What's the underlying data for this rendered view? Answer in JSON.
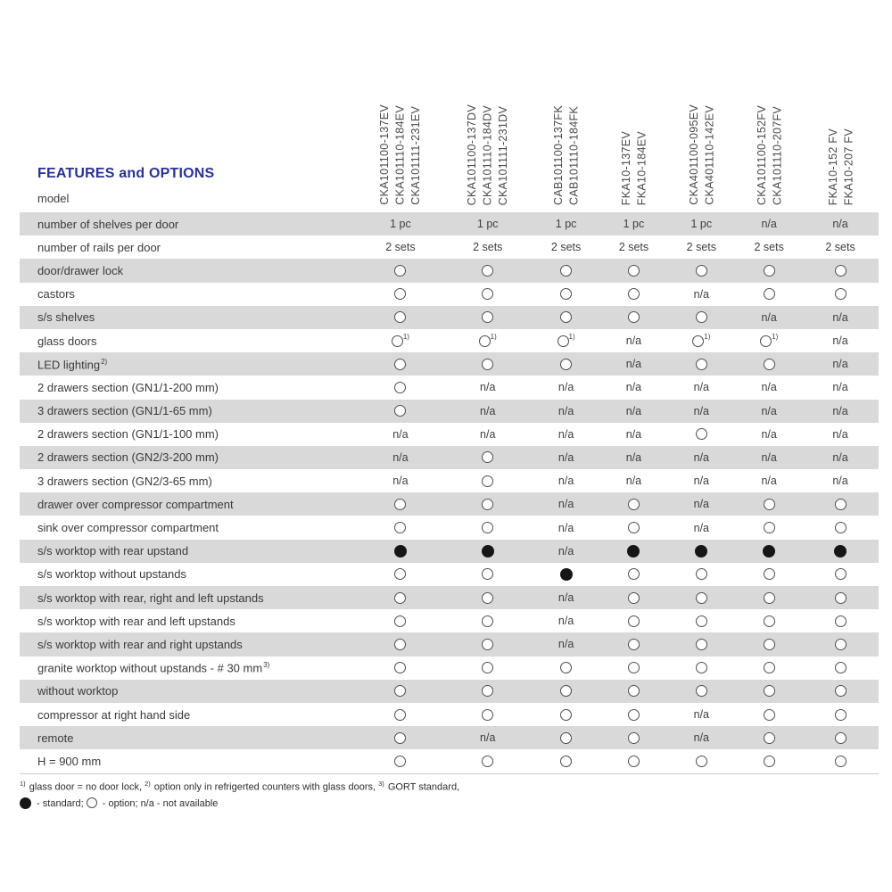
{
  "page": {
    "title": "FEATURES and OPTIONS",
    "model_label": "model"
  },
  "columns": [
    {
      "models": [
        "CKA101100-137EV",
        "CKA101110-184EV",
        "CKA101111-231EV"
      ]
    },
    {
      "models": [
        "CKA101100-137DV",
        "CKA101110-184DV",
        "CKA101111-231DV"
      ]
    },
    {
      "models": [
        "CAB101100-137FK",
        "CAB101110-184FK"
      ]
    },
    {
      "models": [
        "FKA10-137EV",
        "FKA10-184EV"
      ]
    },
    {
      "models": [
        "CKA401100-095EV",
        "CKA401110-142EV"
      ]
    },
    {
      "models": [
        "CKA101100-152FV",
        "CKA101110-207FV"
      ]
    },
    {
      "models": [
        "FKA10-152 FV",
        "FKA10-207 FV"
      ]
    }
  ],
  "sup_option": "1)",
  "rows": [
    {
      "label": "number of shelves per door",
      "values": [
        "1 pc",
        "1 pc",
        "1 pc",
        "1 pc",
        "1 pc",
        "n/a",
        "n/a"
      ]
    },
    {
      "label": "number of rails per door",
      "values": [
        "2 sets",
        "2 sets",
        "2 sets",
        "2 sets",
        "2 sets",
        "2 sets",
        "2 sets"
      ]
    },
    {
      "label": "door/drawer lock",
      "values": [
        "opt",
        "opt",
        "opt",
        "opt",
        "opt",
        "opt",
        "opt"
      ]
    },
    {
      "label": "castors",
      "values": [
        "opt",
        "opt",
        "opt",
        "opt",
        "n/a",
        "opt",
        "opt"
      ]
    },
    {
      "label": "s/s shelves",
      "values": [
        "opt",
        "opt",
        "opt",
        "opt",
        "opt",
        "n/a",
        "n/a"
      ]
    },
    {
      "label": "glass doors",
      "values": [
        "opt1",
        "opt1",
        "opt1",
        "n/a",
        "opt1",
        "opt1",
        "n/a"
      ]
    },
    {
      "label": "LED lighting",
      "sup": "2)",
      "values": [
        "opt",
        "opt",
        "opt",
        "n/a",
        "opt",
        "opt",
        "n/a"
      ]
    },
    {
      "label": "2 drawers section (GN1/1-200 mm)",
      "values": [
        "opt",
        "n/a",
        "n/a",
        "n/a",
        "n/a",
        "n/a",
        "n/a"
      ]
    },
    {
      "label": "3 drawers section (GN1/1-65 mm)",
      "values": [
        "opt",
        "n/a",
        "n/a",
        "n/a",
        "n/a",
        "n/a",
        "n/a"
      ]
    },
    {
      "label": "2 drawers section (GN1/1-100 mm)",
      "values": [
        "n/a",
        "n/a",
        "n/a",
        "n/a",
        "opt",
        "n/a",
        "n/a"
      ]
    },
    {
      "label": "2 drawers section (GN2/3-200 mm)",
      "values": [
        "n/a",
        "opt",
        "n/a",
        "n/a",
        "n/a",
        "n/a",
        "n/a"
      ]
    },
    {
      "label": "3 drawers section (GN2/3-65 mm)",
      "values": [
        "n/a",
        "opt",
        "n/a",
        "n/a",
        "n/a",
        "n/a",
        "n/a"
      ]
    },
    {
      "label": "drawer over compressor compartment",
      "values": [
        "opt",
        "opt",
        "n/a",
        "opt",
        "n/a",
        "opt",
        "opt"
      ]
    },
    {
      "label": "sink over compressor compartment",
      "values": [
        "opt",
        "opt",
        "n/a",
        "opt",
        "n/a",
        "opt",
        "opt"
      ]
    },
    {
      "label": "s/s worktop with rear upstand",
      "values": [
        "std",
        "std",
        "n/a",
        "std",
        "std",
        "std",
        "std"
      ]
    },
    {
      "label": "s/s worktop without upstands",
      "values": [
        "opt",
        "opt",
        "std",
        "opt",
        "opt",
        "opt",
        "opt"
      ]
    },
    {
      "label": "s/s worktop with rear, right and left upstands",
      "values": [
        "opt",
        "opt",
        "n/a",
        "opt",
        "opt",
        "opt",
        "opt"
      ]
    },
    {
      "label": "s/s worktop with rear and left upstands",
      "values": [
        "opt",
        "opt",
        "n/a",
        "opt",
        "opt",
        "opt",
        "opt"
      ]
    },
    {
      "label": "s/s worktop with rear and right upstands",
      "values": [
        "opt",
        "opt",
        "n/a",
        "opt",
        "opt",
        "opt",
        "opt"
      ]
    },
    {
      "label": "granite worktop without upstands - # 30 mm",
      "sup": "3)",
      "values": [
        "opt",
        "opt",
        "opt",
        "opt",
        "opt",
        "opt",
        "opt"
      ]
    },
    {
      "label": "without worktop",
      "values": [
        "opt",
        "opt",
        "opt",
        "opt",
        "opt",
        "opt",
        "opt"
      ]
    },
    {
      "label": "compressor at right hand side",
      "values": [
        "opt",
        "opt",
        "opt",
        "opt",
        "n/a",
        "opt",
        "opt"
      ]
    },
    {
      "label": "remote",
      "values": [
        "opt",
        "n/a",
        "opt",
        "opt",
        "n/a",
        "opt",
        "opt"
      ]
    },
    {
      "label": "H = 900 mm",
      "values": [
        "opt",
        "opt",
        "opt",
        "opt",
        "opt",
        "opt",
        "opt"
      ]
    }
  ],
  "footnote1_parts": [
    {
      "sup": "1)",
      "text": " glass door = no door lock, "
    },
    {
      "sup": "2)",
      "text": " option only in refrigerted counters with glass doors, "
    },
    {
      "sup": "3)",
      "text": " GORT standard,"
    }
  ],
  "footnote2": {
    "standard_label": " - standard; ",
    "option_label": " - option; ",
    "na_label": "n/a - not available"
  },
  "colors": {
    "stripe": "#d9d9d9",
    "title_blue": "#2b3193",
    "standard_dot": "#161616"
  }
}
